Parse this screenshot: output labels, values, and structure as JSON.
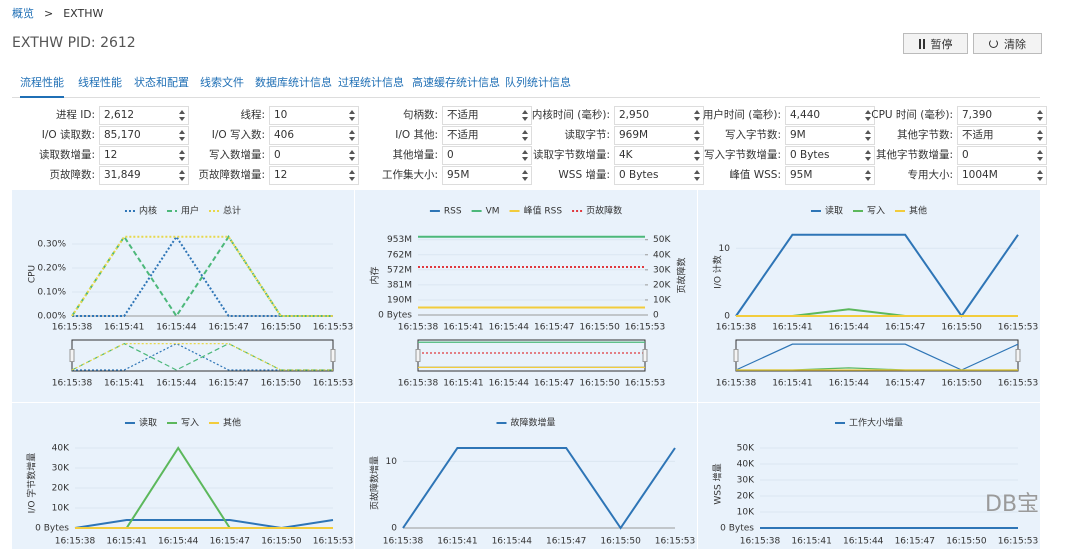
{
  "breadcrumb": {
    "home": "概览",
    "separator": ">",
    "current": "EXTHW"
  },
  "title": "EXTHW PID: 2612",
  "buttons": [
    "暂停",
    "清除"
  ],
  "tabs": [
    "流程性能",
    "线程性能",
    "状态和配置",
    "线索文件",
    "数据库统计信息",
    "过程统计信息",
    "高速缓存统计信息",
    "队列统计信息"
  ],
  "fields": [
    [
      {
        "label": "进程 ID:",
        "value": "2,612"
      },
      {
        "label": "线程:",
        "value": "10"
      },
      {
        "label": "句柄数:",
        "value": "不适用"
      },
      {
        "label": "内核时间 (毫秒):",
        "value": "2,950"
      },
      {
        "label": "用户时间 (毫秒):",
        "value": "4,440"
      },
      {
        "label": "CPU 时间 (毫秒):",
        "value": "7,390"
      }
    ],
    [
      {
        "label": "I/O 读取数:",
        "value": "85,170"
      },
      {
        "label": "I/O 写入数:",
        "value": "406"
      },
      {
        "label": "I/O 其他:",
        "value": "不适用"
      },
      {
        "label": "读取字节:",
        "value": "969M"
      },
      {
        "label": "写入字节数:",
        "value": "9M"
      },
      {
        "label": "其他字节数:",
        "value": "不适用"
      }
    ],
    [
      {
        "label": "读取数增量:",
        "value": "12"
      },
      {
        "label": "写入数增量:",
        "value": "0"
      },
      {
        "label": "其他增量:",
        "value": "0"
      },
      {
        "label": "读取字节数增量:",
        "value": "4K"
      },
      {
        "label": "写入字节数增量:",
        "value": "0 Bytes"
      },
      {
        "label": "其他字节数增量:",
        "value": "0"
      }
    ],
    [
      {
        "label": "页故障数:",
        "value": "31,849"
      },
      {
        "label": "页故障数增量:",
        "value": "12"
      },
      {
        "label": "工作集大小:",
        "value": "95M"
      },
      {
        "label": "WSS 增量:",
        "value": "0 Bytes"
      },
      {
        "label": "峰值 WSS:",
        "value": "95M"
      },
      {
        "label": "专用大小:",
        "value": "1004M"
      }
    ]
  ],
  "times": [
    "16:15:38",
    "16:15:41",
    "16:15:44",
    "16:15:47",
    "16:15:50",
    "16:15:53"
  ],
  "charts": [
    {
      "type": "line",
      "ylabel": "CPU",
      "navigator": true,
      "ylim": [
        0,
        0.35
      ],
      "yticks": [
        {
          "value": 0,
          "label": "0.00%"
        },
        {
          "value": 0.1,
          "label": "0.10%"
        },
        {
          "value": 0.2,
          "label": "0.20%"
        },
        {
          "value": 0.3,
          "label": "0.30%"
        }
      ],
      "series": [
        {
          "name": "内核",
          "color": "#2e75b6",
          "style": "dotted",
          "values": [
            0,
            0,
            0.33,
            0,
            0,
            0
          ]
        },
        {
          "name": "用户",
          "color": "#4cb87a",
          "style": "dashed",
          "values": [
            0,
            0.33,
            0,
            0.33,
            0,
            0
          ]
        },
        {
          "name": "总计",
          "color": "#e8d84a",
          "style": "dotted",
          "values": [
            0,
            0.33,
            0.33,
            0.33,
            0,
            0
          ]
        }
      ]
    },
    {
      "type": "line",
      "ylabel": "内存",
      "y2label": "页故障数",
      "navigator": true,
      "ylim": [
        0,
        1000
      ],
      "y2lim": [
        0,
        52466
      ],
      "yticks": [
        {
          "value": 0,
          "label": "0 Bytes"
        },
        {
          "value": 190,
          "label": "190M"
        },
        {
          "value": 381,
          "label": "381M"
        },
        {
          "value": 572,
          "label": "572M"
        },
        {
          "value": 762,
          "label": "762M"
        },
        {
          "value": 953,
          "label": "953M"
        }
      ],
      "y2ticks": [
        0,
        {
          "value": 10000,
          "label": "10K"
        },
        {
          "value": 20000,
          "label": "20K"
        },
        {
          "value": 30000,
          "label": "30K"
        },
        {
          "value": 40000,
          "label": "40K"
        },
        {
          "value": 50000,
          "label": "50K"
        }
      ],
      "series": [
        {
          "name": "RSS",
          "color": "#2e75b6",
          "style": "solid",
          "values": [
            95,
            95,
            95,
            95,
            95,
            95
          ]
        },
        {
          "name": "VM",
          "color": "#4cb87a",
          "style": "solid",
          "values": [
            990,
            990,
            990,
            990,
            990,
            990
          ]
        },
        {
          "name": "峰值 RSS",
          "color": "#f2cc3c",
          "style": "solid",
          "values": [
            95,
            95,
            95,
            95,
            95,
            95
          ]
        },
        {
          "name": "页故障数",
          "color": "#e0383e",
          "style": "dotted",
          "axis": "y2",
          "values": [
            31849,
            31849,
            31849,
            31849,
            31849,
            31849
          ]
        }
      ]
    },
    {
      "type": "line",
      "ylabel": "I/O 计数",
      "navigator": true,
      "ylim": [
        0,
        13
      ],
      "yticks": [
        0,
        10
      ],
      "series": [
        {
          "name": "读取",
          "color": "#2e75b6",
          "style": "solid",
          "values": [
            0,
            12,
            12,
            12,
            0,
            12
          ]
        },
        {
          "name": "写入",
          "color": "#5cb85c",
          "style": "solid",
          "values": [
            0,
            0,
            1,
            0,
            0,
            0
          ]
        },
        {
          "name": "其他",
          "color": "#f2cc3c",
          "style": "solid",
          "values": [
            0,
            0,
            0,
            0,
            0,
            0
          ]
        }
      ]
    },
    {
      "type": "line",
      "ylabel": "I/O 字节数增量",
      "navigator": false,
      "ylim": [
        0,
        45000
      ],
      "yticks": [
        {
          "value": 0,
          "label": "0 Bytes"
        },
        {
          "value": 10000,
          "label": "10K"
        },
        {
          "value": 20000,
          "label": "20K"
        },
        {
          "value": 30000,
          "label": "30K"
        },
        {
          "value": 40000,
          "label": "40K"
        }
      ],
      "series": [
        {
          "name": "读取",
          "color": "#2e75b6",
          "style": "solid",
          "values": [
            0,
            4000,
            4000,
            4000,
            0,
            4000
          ]
        },
        {
          "name": "写入",
          "color": "#5cb85c",
          "style": "solid",
          "values": [
            0,
            0,
            40000,
            0,
            0,
            0
          ]
        },
        {
          "name": "其他",
          "color": "#f2cc3c",
          "style": "solid",
          "values": [
            0,
            0,
            0,
            0,
            0,
            0
          ]
        }
      ]
    },
    {
      "type": "line",
      "ylabel": "页故障数增量",
      "navigator": false,
      "ylim": [
        0,
        13.5
      ],
      "yticks": [
        0,
        10
      ],
      "series": [
        {
          "name": "故障数增量",
          "color": "#2e75b6",
          "style": "solid",
          "values": [
            0,
            12,
            12,
            12,
            0,
            12
          ]
        }
      ]
    },
    {
      "type": "line",
      "ylabel": "WSS 增量",
      "navigator": false,
      "ylim": [
        0,
        55000
      ],
      "yticks": [
        {
          "value": 0,
          "label": "0 Bytes"
        },
        {
          "value": 10000,
          "label": "10K"
        },
        {
          "value": 20000,
          "label": "20K"
        },
        {
          "value": 30000,
          "label": "30K"
        },
        {
          "value": 40000,
          "label": "40K"
        },
        {
          "value": 50000,
          "label": "50K"
        }
      ],
      "series": [
        {
          "name": "工作大小增量",
          "color": "#2e75b6",
          "style": "solid",
          "values": [
            0,
            0,
            0,
            0,
            0,
            0
          ]
        }
      ]
    }
  ],
  "watermark": "DB宝"
}
